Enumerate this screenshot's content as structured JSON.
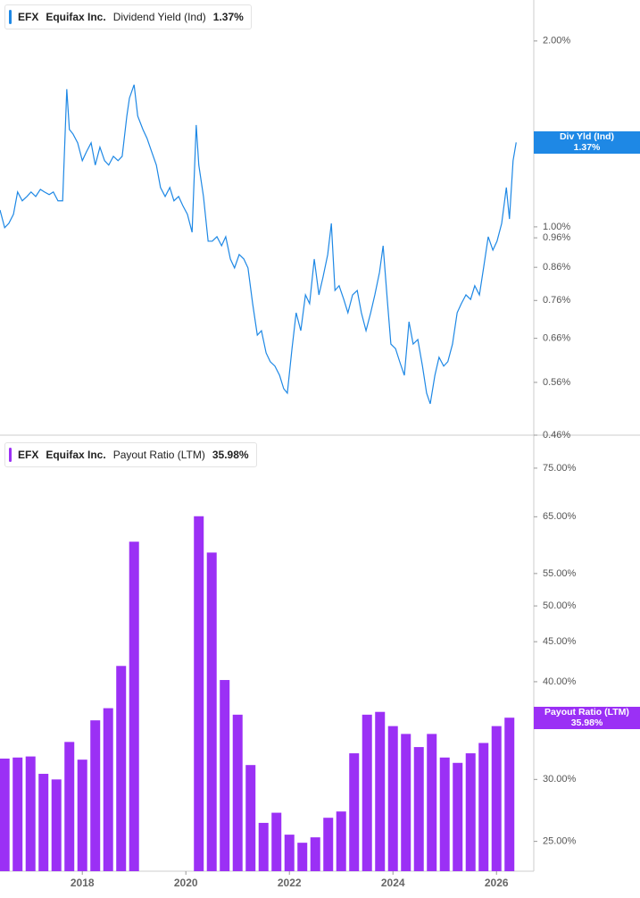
{
  "chart_data": [
    {
      "type": "line",
      "header": {
        "ticker": "EFX",
        "company": "Equifax Inc.",
        "metric": "Dividend Yield (Ind)",
        "value_label": "1.37%"
      },
      "badge": {
        "label": "Div Yld (Ind)",
        "value_label": "1.37%"
      },
      "color": "#1e88e5",
      "log_scale": true,
      "xlim": [
        2016.41,
        2026.72
      ],
      "ylim": [
        0.46,
        2.33
      ],
      "yticks": [
        {
          "value": 2,
          "label": "2.00%"
        },
        {
          "value": 1,
          "label": "1.00%"
        },
        {
          "value": 0.96,
          "label": "0.96%"
        },
        {
          "value": 0.86,
          "label": "0.86%"
        },
        {
          "value": 0.76,
          "label": "0.76%"
        },
        {
          "value": 0.66,
          "label": "0.66%"
        },
        {
          "value": 0.56,
          "label": "0.56%"
        },
        {
          "value": 0.46,
          "label": "0.46%"
        }
      ],
      "x": [
        2016.41,
        2016.5,
        2016.58,
        2016.67,
        2016.75,
        2016.84,
        2016.93,
        2017.01,
        2017.1,
        2017.19,
        2017.27,
        2017.36,
        2017.44,
        2017.53,
        2017.62,
        2017.7,
        2017.75,
        2017.82,
        2017.91,
        2018.0,
        2018.08,
        2018.17,
        2018.25,
        2018.34,
        2018.43,
        2018.51,
        2018.6,
        2018.69,
        2018.77,
        2018.86,
        2018.91,
        2019.0,
        2019.07,
        2019.17,
        2019.25,
        2019.34,
        2019.43,
        2019.51,
        2019.6,
        2019.69,
        2019.77,
        2019.86,
        2019.94,
        2020.03,
        2020.12,
        2020.2,
        2020.25,
        2020.34,
        2020.43,
        2020.51,
        2020.6,
        2020.69,
        2020.77,
        2020.86,
        2020.94,
        2021.03,
        2021.12,
        2021.2,
        2021.29,
        2021.38,
        2021.46,
        2021.55,
        2021.63,
        2021.72,
        2021.81,
        2021.89,
        2021.96,
        2022.05,
        2022.13,
        2022.22,
        2022.31,
        2022.39,
        2022.48,
        2022.57,
        2022.65,
        2022.74,
        2022.81,
        2022.88,
        2022.96,
        2023.05,
        2023.13,
        2023.22,
        2023.31,
        2023.39,
        2023.48,
        2023.57,
        2023.65,
        2023.74,
        2023.81,
        2023.89,
        2023.96,
        2024.05,
        2024.13,
        2024.22,
        2024.31,
        2024.39,
        2024.48,
        2024.57,
        2024.65,
        2024.72,
        2024.81,
        2024.89,
        2024.98,
        2025.06,
        2025.15,
        2025.24,
        2025.32,
        2025.41,
        2025.5,
        2025.58,
        2025.67,
        2025.75,
        2025.84,
        2025.93,
        2026.01,
        2026.1,
        2026.19,
        2026.25,
        2026.32,
        2026.38
      ],
      "values": [
        1.065,
        0.997,
        1.013,
        1.048,
        1.139,
        1.102,
        1.12,
        1.139,
        1.12,
        1.15,
        1.139,
        1.128,
        1.139,
        1.102,
        1.102,
        1.671,
        1.438,
        1.414,
        1.368,
        1.28,
        1.323,
        1.368,
        1.259,
        1.346,
        1.28,
        1.259,
        1.301,
        1.28,
        1.301,
        1.512,
        1.616,
        1.699,
        1.512,
        1.438,
        1.391,
        1.323,
        1.259,
        1.158,
        1.12,
        1.158,
        1.102,
        1.12,
        1.083,
        1.048,
        0.98,
        1.462,
        1.259,
        1.12,
        0.948,
        0.948,
        0.964,
        0.932,
        0.964,
        0.887,
        0.858,
        0.902,
        0.887,
        0.858,
        0.751,
        0.668,
        0.679,
        0.625,
        0.605,
        0.595,
        0.575,
        0.547,
        0.538,
        0.635,
        0.726,
        0.679,
        0.776,
        0.751,
        0.887,
        0.776,
        0.83,
        0.902,
        1.013,
        0.789,
        0.803,
        0.763,
        0.726,
        0.776,
        0.789,
        0.726,
        0.679,
        0.726,
        0.776,
        0.844,
        0.932,
        0.763,
        0.646,
        0.635,
        0.605,
        0.575,
        0.702,
        0.646,
        0.657,
        0.595,
        0.538,
        0.517,
        0.575,
        0.615,
        0.595,
        0.605,
        0.646,
        0.726,
        0.751,
        0.776,
        0.763,
        0.803,
        0.776,
        0.858,
        0.964,
        0.917,
        0.948,
        1.013,
        1.158,
        1.03,
        1.28,
        1.37
      ]
    },
    {
      "type": "bar",
      "header": {
        "ticker": "EFX",
        "company": "Equifax Inc.",
        "metric": "Payout Ratio (LTM)",
        "value_label": "35.98%"
      },
      "badge": {
        "label": "Payout Ratio (LTM)",
        "value_label": "35.98%"
      },
      "color": "#9b30f5",
      "log_scale": true,
      "xlim": [
        2016.41,
        2026.72
      ],
      "xticks": [
        2018,
        2020,
        2022,
        2024,
        2026
      ],
      "ylim": [
        22.9,
        82
      ],
      "yticks": [
        {
          "value": 75,
          "label": "75.00%"
        },
        {
          "value": 65,
          "label": "65.00%"
        },
        {
          "value": 55,
          "label": "55.00%"
        },
        {
          "value": 50,
          "label": "50.00%"
        },
        {
          "value": 45,
          "label": "45.00%"
        },
        {
          "value": 40,
          "label": "40.00%"
        },
        {
          "value": 30,
          "label": "30.00%"
        },
        {
          "value": 25,
          "label": "25.00%"
        }
      ],
      "x": [
        2016.5,
        2016.75,
        2017.0,
        2017.25,
        2017.5,
        2017.75,
        2018.0,
        2018.25,
        2018.5,
        2018.75,
        2019.0,
        2020.25,
        2020.5,
        2020.75,
        2021.0,
        2021.25,
        2021.5,
        2021.75,
        2022.0,
        2022.25,
        2022.5,
        2022.75,
        2023.0,
        2023.25,
        2023.5,
        2023.75,
        2024.0,
        2024.25,
        2024.5,
        2024.75,
        2025.0,
        2025.25,
        2025.5,
        2025.75,
        2026.0,
        2026.25
      ],
      "values": [
        31.9,
        32.0,
        32.1,
        30.5,
        30.0,
        33.5,
        31.8,
        35.7,
        37.0,
        41.9,
        60.4,
        65.1,
        58.5,
        40.2,
        36.3,
        31.3,
        26.4,
        27.2,
        25.5,
        24.9,
        25.3,
        26.8,
        27.3,
        32.4,
        36.3,
        36.6,
        35.1,
        34.3,
        33.0,
        34.3,
        32.0,
        31.5,
        32.4,
        33.4,
        35.1,
        35.98
      ]
    }
  ]
}
